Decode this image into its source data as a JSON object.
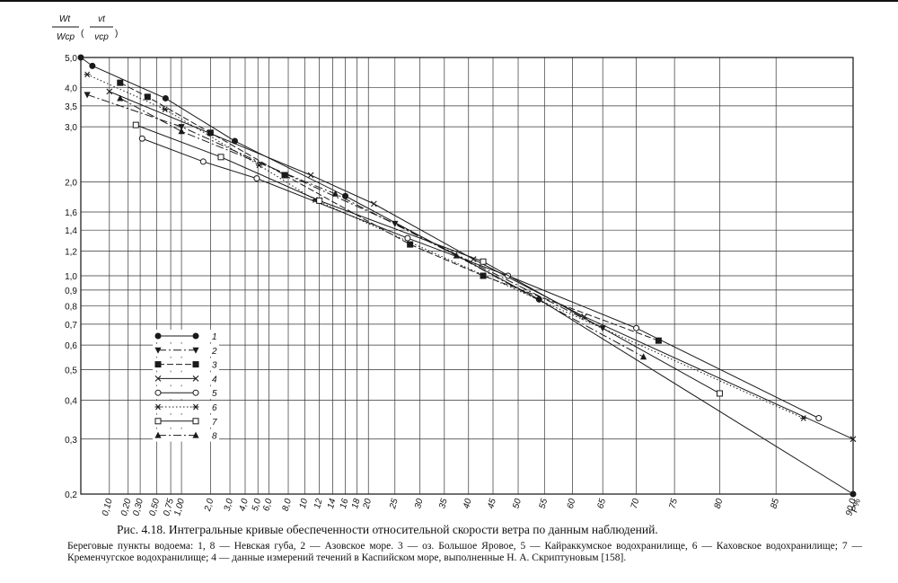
{
  "chart_data": {
    "type": "probability-plot",
    "ylabel": [
      "Wt",
      "Wср",
      "vt",
      "vср"
    ],
    "xlabel": "P%",
    "xscale": "weibull",
    "yscale": "log",
    "grid": true,
    "xlim": [
      0.03,
      90
    ],
    "ylim": [
      0.2,
      5.0
    ],
    "xticks": [
      {
        "value": 0.1,
        "label": "0,10"
      },
      {
        "value": 0.2,
        "label": "0,20"
      },
      {
        "value": 0.3,
        "label": "0,30"
      },
      {
        "value": 0.5,
        "label": "0,50"
      },
      {
        "value": 0.75,
        "label": "0,75"
      },
      {
        "value": 1,
        "label": "1,00"
      },
      {
        "value": 2,
        "label": "2,0"
      },
      {
        "value": 3,
        "label": "3,0"
      },
      {
        "value": 4,
        "label": "4,0"
      },
      {
        "value": 5,
        "label": "5,0"
      },
      {
        "value": 6,
        "label": "6,0"
      },
      {
        "value": 8,
        "label": "8,0"
      },
      10,
      12,
      14,
      16,
      18,
      20,
      25,
      30,
      35,
      40,
      45,
      50,
      55,
      60,
      65,
      70,
      75,
      80,
      85,
      {
        "value": 90,
        "label": "90,0"
      }
    ],
    "yticks": [
      {
        "value": 0.2,
        "label": "0,2"
      },
      {
        "value": 0.3,
        "label": "0,3"
      },
      {
        "value": 0.4,
        "label": "0,4"
      },
      {
        "value": 0.5,
        "label": "0,5"
      },
      {
        "value": 0.6,
        "label": "0,6"
      },
      {
        "value": 0.7,
        "label": "0,7"
      },
      {
        "value": 0.8,
        "label": "0,8"
      },
      {
        "value": 0.9,
        "label": "0,9"
      },
      {
        "value": 1.0,
        "label": "1,0"
      },
      {
        "value": 1.2,
        "label": "1,2"
      },
      {
        "value": 1.4,
        "label": "1,4"
      },
      {
        "value": 1.6,
        "label": "1,6"
      },
      {
        "value": 2.0,
        "label": "2,0"
      },
      {
        "value": 3.0,
        "label": "3,0"
      },
      {
        "value": 3.5,
        "label": "3,5"
      },
      {
        "value": 4.0,
        "label": "4,0"
      },
      {
        "value": 5.0,
        "label": "5,0"
      }
    ],
    "series": [
      {
        "name": "1",
        "color": "#1a1a1a",
        "marker": "circle",
        "dash": "solid",
        "x": [
          0.03,
          0.05,
          0.65,
          3.3,
          16,
          54,
          90
        ],
        "values": [
          5.0,
          4.7,
          3.7,
          2.7,
          1.8,
          0.84,
          0.2
        ]
      },
      {
        "name": "2",
        "color": "#1a1a1a",
        "marker": "triangle-down",
        "dash": "dashdot",
        "x": [
          0.04,
          1.0,
          25,
          65
        ],
        "values": [
          3.8,
          3.0,
          1.47,
          0.68
        ]
      },
      {
        "name": "3",
        "color": "#1a1a1a",
        "marker": "square",
        "dash": "dashed",
        "x": [
          0.15,
          0.38,
          2.0,
          7.6,
          28,
          43,
          73
        ],
        "values": [
          4.15,
          3.74,
          2.87,
          2.1,
          1.26,
          1.0,
          0.62
        ]
      },
      {
        "name": "4",
        "color": "#1a1a1a",
        "marker": "cross",
        "dash": "solid",
        "x": [
          0.1,
          10.8,
          21,
          41,
          62,
          90
        ],
        "values": [
          3.89,
          2.1,
          1.7,
          1.13,
          0.74,
          0.3
        ]
      },
      {
        "name": "5",
        "color": "#1a1a1a",
        "marker": "circle-open",
        "dash": "solid",
        "x": [
          0.32,
          1.7,
          4.9,
          27.5,
          48,
          70,
          88
        ],
        "values": [
          2.75,
          2.32,
          2.05,
          1.32,
          1.0,
          0.68,
          0.35
        ]
      },
      {
        "name": "6",
        "color": "#1a1a1a",
        "marker": "asterisk",
        "dash": "dotted",
        "x": [
          0.04,
          0.64,
          5.1,
          11.4,
          87
        ],
        "values": [
          4.41,
          3.41,
          2.26,
          1.75,
          0.35
        ]
      },
      {
        "name": "7",
        "color": "#1a1a1a",
        "marker": "square-open",
        "dash": "solid",
        "x": [
          0.26,
          2.5,
          12,
          43,
          80
        ],
        "values": [
          3.04,
          2.4,
          1.74,
          1.11,
          0.42
        ]
      },
      {
        "name": "8",
        "color": "#1a1a1a",
        "marker": "triangle-up",
        "dash": "dashdot",
        "x": [
          0.15,
          1.0,
          14.4,
          37.5,
          71
        ],
        "values": [
          3.7,
          2.9,
          1.83,
          1.16,
          0.55
        ]
      }
    ],
    "title": "Рис. 4.18. Интегральные кривые обеспеченности относительной скорости ветра по данным наблюдений.",
    "caption": "Береговые пункты водоема: 1, 8 — Невская губа, 2 — Азовское море. 3 — оз. Большое Яровое, 5 — Кайраккумское водохранилище, 6 — Каховское водохранилище; 7 — Кременчугское водохранилище; 4 — данные измерений течений в Каспийском море, выполненные Н. А. Скриптуновым [158]."
  }
}
